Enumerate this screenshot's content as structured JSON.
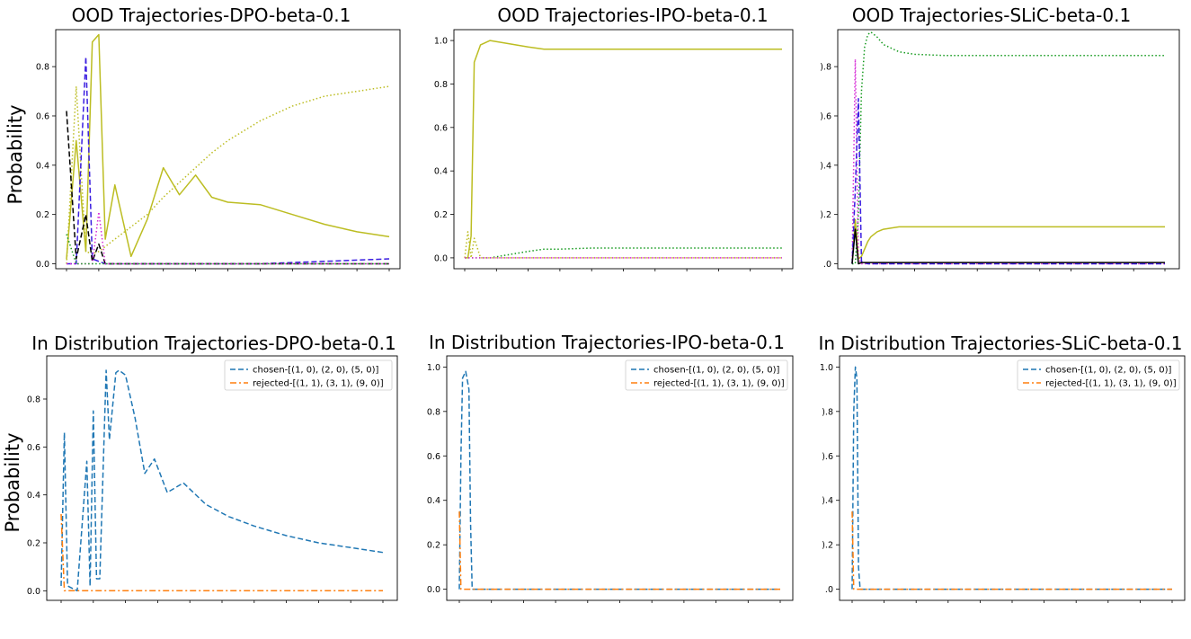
{
  "chart_data": [
    {
      "type": "line",
      "title": "OOD Trajectories-DPO-beta-0.1",
      "xlabel": "",
      "ylabel": "Probability",
      "ylim": [
        -0.02,
        0.95
      ],
      "yticks": [
        "0.0",
        "0.2",
        "0.4",
        "0.6",
        "0.8"
      ],
      "ytick_values": [
        0,
        0.2,
        0.4,
        0.6,
        0.8
      ],
      "x": [
        0,
        0.03,
        0.06,
        0.08,
        0.1,
        0.12,
        0.15,
        0.2,
        0.25,
        0.3,
        0.35,
        0.4,
        0.45,
        0.5,
        0.6,
        0.7,
        0.8,
        0.9,
        1.0
      ],
      "series": [
        {
          "name": "yellow-green solid",
          "color": "#bcbd22",
          "dash": "solid",
          "values": [
            0.02,
            0.5,
            0.05,
            0.9,
            0.93,
            0.1,
            0.32,
            0.03,
            0.18,
            0.39,
            0.28,
            0.36,
            0.27,
            0.25,
            0.24,
            0.2,
            0.16,
            0.13,
            0.11
          ]
        },
        {
          "name": "yellow-green dotted",
          "color": "#bcbd22",
          "dash": "dotted",
          "values": [
            0.0,
            0.72,
            0.05,
            0.04,
            0.05,
            0.07,
            0.1,
            0.15,
            0.2,
            0.27,
            0.33,
            0.39,
            0.45,
            0.5,
            0.58,
            0.64,
            0.68,
            0.7,
            0.72
          ]
        },
        {
          "name": "blue-violet dashed",
          "color": "#3b1ee0",
          "dash": "dashed",
          "values": [
            0.0,
            0.0,
            0.84,
            0.02,
            0.01,
            0.0,
            0.0,
            0.0,
            0.0,
            0.0,
            0.0,
            0.0,
            0.0,
            0.0,
            0.0,
            0.005,
            0.01,
            0.015,
            0.02
          ]
        },
        {
          "name": "black dashed",
          "color": "#000000",
          "dash": "dashed",
          "values": [
            0.62,
            0.02,
            0.2,
            0.01,
            0.08,
            0.0,
            0.0,
            0.0,
            0.0,
            0.0,
            0.0,
            0.0,
            0.0,
            0.0,
            0.0,
            0.0,
            0.0,
            0.0,
            0.0
          ]
        },
        {
          "name": "magenta dotted",
          "color": "#d62ad6",
          "dash": "dotted",
          "values": [
            0.0,
            0.0,
            0.0,
            0.0,
            0.21,
            0.0,
            0.0,
            0.0,
            0.0,
            0.0,
            0.0,
            0.0,
            0.0,
            0.0,
            0.0,
            0.0,
            0.0,
            0.0,
            0.0
          ]
        },
        {
          "name": "green dotted",
          "color": "#159a1e",
          "dash": "dotted",
          "values": [
            0.12,
            0.0,
            0.0,
            0.0,
            0.0,
            0.0,
            0.0,
            0.0,
            0.0,
            0.0,
            0.0,
            0.0,
            0.0,
            0.0,
            0.0,
            0.0,
            0.0,
            0.0,
            0.0
          ]
        }
      ]
    },
    {
      "type": "line",
      "title": "OOD Trajectories-IPO-beta-0.1",
      "xlabel": "",
      "ylabel": "",
      "ylim": [
        -0.05,
        1.05
      ],
      "yticks": [
        "0.0",
        "0.2",
        "0.4",
        "0.6",
        "0.8",
        "1.0"
      ],
      "ytick_values": [
        0,
        0.2,
        0.4,
        0.6,
        0.8,
        1.0
      ],
      "x": [
        0,
        0.01,
        0.02,
        0.03,
        0.05,
        0.08,
        0.12,
        0.2,
        0.25,
        0.3,
        0.4,
        0.5,
        0.6,
        0.7,
        0.8,
        0.9,
        1.0
      ],
      "series": [
        {
          "name": "yellow-green solid",
          "color": "#bcbd22",
          "dash": "solid",
          "values": [
            0.0,
            0.0,
            0.1,
            0.9,
            0.98,
            1.0,
            0.99,
            0.97,
            0.96,
            0.96,
            0.96,
            0.96,
            0.96,
            0.96,
            0.96,
            0.96,
            0.96
          ]
        },
        {
          "name": "green dotted",
          "color": "#159a1e",
          "dash": "dotted",
          "values": [
            0.0,
            0.0,
            0.0,
            0.0,
            0.0,
            0.0,
            0.01,
            0.03,
            0.04,
            0.04,
            0.045,
            0.045,
            0.045,
            0.045,
            0.045,
            0.045,
            0.045
          ]
        },
        {
          "name": "yellow-green dotted",
          "color": "#bcbd22",
          "dash": "dotted",
          "values": [
            0.0,
            0.12,
            0.0,
            0.09,
            0.0,
            0.0,
            0.0,
            0.0,
            0.0,
            0.0,
            0.0,
            0.0,
            0.0,
            0.0,
            0.0,
            0.0,
            0.0
          ]
        },
        {
          "name": "magenta dotted",
          "color": "#d62ad6",
          "dash": "dotted",
          "values": [
            0.0,
            0.0,
            0.0,
            0.0,
            0.0,
            0.0,
            0.0,
            0.0,
            0.0,
            0.0,
            0.0,
            0.0,
            0.0,
            0.0,
            0.0,
            0.0,
            0.0
          ]
        }
      ]
    },
    {
      "type": "line",
      "title": "OOD Trajectories-SLiC-beta-0.1",
      "xlabel": "",
      "ylabel": "",
      "ylim": [
        -0.02,
        0.95
      ],
      "yticks": [
        ".0",
        ").2",
        ").4",
        ").6",
        ").8"
      ],
      "ytick_values": [
        0,
        0.2,
        0.4,
        0.6,
        0.8
      ],
      "x": [
        0,
        0.01,
        0.02,
        0.03,
        0.04,
        0.05,
        0.06,
        0.08,
        0.1,
        0.15,
        0.2,
        0.3,
        0.4,
        0.5,
        0.6,
        0.7,
        0.8,
        0.9,
        1.0
      ],
      "series": [
        {
          "name": "green dotted",
          "color": "#159a1e",
          "dash": "dotted",
          "values": [
            0.0,
            0.0,
            0.2,
            0.7,
            0.88,
            0.93,
            0.94,
            0.92,
            0.89,
            0.86,
            0.85,
            0.845,
            0.845,
            0.845,
            0.845,
            0.845,
            0.845,
            0.845,
            0.845
          ]
        },
        {
          "name": "yellow-green solid",
          "color": "#bcbd22",
          "dash": "solid",
          "values": [
            0.0,
            0.18,
            0.02,
            0.03,
            0.06,
            0.09,
            0.11,
            0.13,
            0.14,
            0.15,
            0.15,
            0.15,
            0.15,
            0.15,
            0.15,
            0.15,
            0.15,
            0.15,
            0.15
          ]
        },
        {
          "name": "magenta dotted",
          "color": "#d62ad6",
          "dash": "dotted",
          "values": [
            0.0,
            0.83,
            0.02,
            0.0,
            0.0,
            0.0,
            0.0,
            0.0,
            0.0,
            0.0,
            0.0,
            0.0,
            0.0,
            0.0,
            0.0,
            0.0,
            0.0,
            0.0,
            0.0
          ]
        },
        {
          "name": "blue-violet dashed",
          "color": "#3b1ee0",
          "dash": "dashed",
          "values": [
            0.0,
            0.3,
            0.67,
            0.01,
            0.005,
            0.0,
            0.0,
            0.0,
            0.0,
            0.0,
            0.0,
            0.0,
            0.0,
            0.0,
            0.0,
            0.0,
            0.0,
            0.0,
            0.0
          ]
        },
        {
          "name": "black solid",
          "color": "#000000",
          "dash": "solid",
          "values": [
            0.0,
            0.14,
            0.0,
            0.005,
            0.005,
            0.005,
            0.005,
            0.005,
            0.005,
            0.005,
            0.005,
            0.005,
            0.005,
            0.005,
            0.005,
            0.005,
            0.005,
            0.005,
            0.005
          ]
        }
      ]
    },
    {
      "type": "line",
      "title": "In Distribution Trajectories-DPO-beta-0.1",
      "xlabel": "",
      "ylabel": "Probability",
      "ylim": [
        -0.04,
        0.98
      ],
      "yticks": [
        "0.0",
        "0.2",
        "0.4",
        "0.6",
        "0.8"
      ],
      "ytick_values": [
        0,
        0.2,
        0.4,
        0.6,
        0.8
      ],
      "legend": [
        "chosen-[(1, 0), (2, 0), (5, 0)]",
        "rejected-[(1, 1), (3, 1), (9, 0)]"
      ],
      "x": [
        0,
        0.01,
        0.02,
        0.05,
        0.08,
        0.09,
        0.1,
        0.11,
        0.12,
        0.14,
        0.15,
        0.17,
        0.18,
        0.2,
        0.23,
        0.26,
        0.29,
        0.33,
        0.38,
        0.45,
        0.52,
        0.6,
        0.7,
        0.8,
        0.9,
        1.0
      ],
      "series": [
        {
          "name": "chosen-[(1, 0), (2, 0), (5, 0)]",
          "color": "#1f77b4",
          "dash": "dashed",
          "values": [
            0.02,
            0.66,
            0.02,
            0.0,
            0.54,
            0.02,
            0.75,
            0.05,
            0.05,
            0.92,
            0.63,
            0.91,
            0.92,
            0.9,
            0.72,
            0.49,
            0.55,
            0.41,
            0.45,
            0.36,
            0.31,
            0.27,
            0.23,
            0.2,
            0.18,
            0.16
          ]
        },
        {
          "name": "rejected-[(1, 1), (3, 1), (9, 0)]",
          "color": "#ff7f0e",
          "dash": "dashdot",
          "values": [
            0.32,
            0.0,
            0.0,
            0.0,
            0.0,
            0.0,
            0.0,
            0.0,
            0.0,
            0.0,
            0.0,
            0.0,
            0.0,
            0.0,
            0.0,
            0.0,
            0.0,
            0.0,
            0.0,
            0.0,
            0.0,
            0.0,
            0.0,
            0.0,
            0.0,
            0.0
          ]
        }
      ]
    },
    {
      "type": "line",
      "title": "In Distribution Trajectories-IPO-beta-0.1",
      "xlabel": "",
      "ylabel": "",
      "ylim": [
        -0.05,
        1.05
      ],
      "yticks": [
        "0.0",
        "0.2",
        "0.4",
        "0.6",
        "0.8",
        "1.0"
      ],
      "ytick_values": [
        0,
        0.2,
        0.4,
        0.6,
        0.8,
        1.0
      ],
      "legend": [
        "chosen-[(1, 0), (2, 0), (5, 0)]",
        "rejected-[(1, 1), (3, 1), (9, 0)]"
      ],
      "x": [
        0,
        0.005,
        0.01,
        0.02,
        0.03,
        0.035,
        0.04,
        1.0
      ],
      "series": [
        {
          "name": "chosen-[(1, 0), (2, 0), (5, 0)]",
          "color": "#1f77b4",
          "dash": "dashed",
          "values": [
            0.0,
            0.6,
            0.95,
            0.98,
            0.9,
            0.3,
            0.0,
            0.0
          ]
        },
        {
          "name": "rejected-[(1, 1), (3, 1), (9, 0)]",
          "color": "#ff7f0e",
          "dash": "dashdot",
          "values": [
            0.35,
            0.0,
            0.0,
            0.0,
            0.0,
            0.0,
            0.0,
            0.0
          ]
        }
      ]
    },
    {
      "type": "line",
      "title": "In Distribution Trajectories-SLiC-beta-0.1",
      "xlabel": "",
      "ylabel": "",
      "ylim": [
        -0.05,
        1.05
      ],
      "yticks": [
        ".0",
        ").2",
        ").4",
        ").6",
        ").8",
        "1.0"
      ],
      "ytick_values": [
        0,
        0.2,
        0.4,
        0.6,
        0.8,
        1.0
      ],
      "legend": [
        "chosen-[(1, 0), (2, 0), (5, 0)]",
        "rejected-[(1, 1), (3, 1), (9, 0)]"
      ],
      "x": [
        0,
        0.005,
        0.01,
        0.015,
        0.02,
        0.025,
        1.0
      ],
      "series": [
        {
          "name": "chosen-[(1, 0), (2, 0), (5, 0)]",
          "color": "#1f77b4",
          "dash": "dashed",
          "values": [
            0.0,
            0.8,
            1.0,
            0.95,
            0.1,
            0.0,
            0.0
          ]
        },
        {
          "name": "rejected-[(1, 1), (3, 1), (9, 0)]",
          "color": "#ff7f0e",
          "dash": "dashdot",
          "values": [
            0.35,
            0.0,
            0.0,
            0.0,
            0.0,
            0.0,
            0.0
          ]
        }
      ]
    }
  ]
}
